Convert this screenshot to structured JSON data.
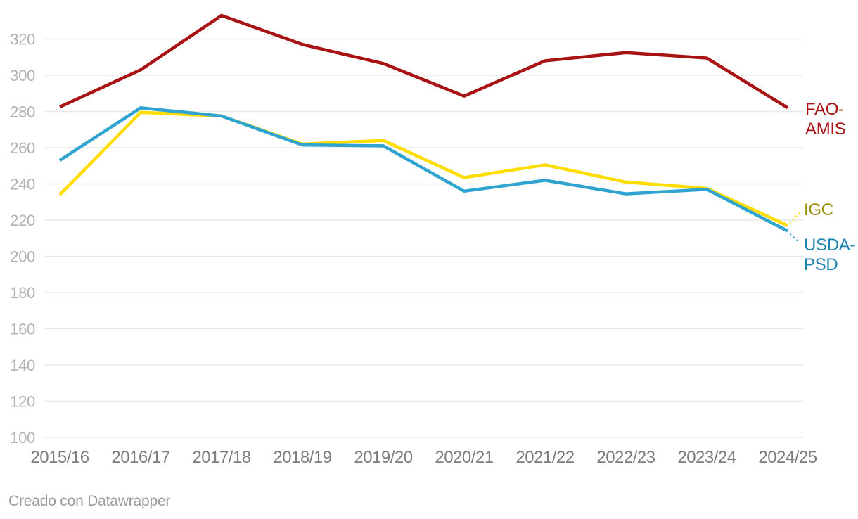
{
  "chart_data": {
    "type": "line",
    "categories": [
      "2015/16",
      "2016/17",
      "2017/18",
      "2018/19",
      "2019/20",
      "2020/21",
      "2021/22",
      "2022/23",
      "2023/24",
      "2024/25"
    ],
    "series": [
      {
        "name": "FAO-AMIS",
        "color": "#a81213",
        "label_color": "#a81213",
        "values": [
          282.5,
          303,
          333,
          317,
          306.5,
          288.5,
          308,
          312.5,
          309.5,
          282
        ]
      },
      {
        "name": "IGC",
        "color": "#ffdd00",
        "label_color": "#998c00",
        "values": [
          234,
          279.5,
          277.5,
          262,
          264,
          243.5,
          250.5,
          241,
          237.5,
          217
        ]
      },
      {
        "name": "USDA-PSD",
        "color": "#30a4d0",
        "label_color": "#1e84b0",
        "values": [
          253,
          282,
          277.5,
          261.5,
          261,
          236,
          242,
          234.5,
          237,
          214
        ]
      }
    ],
    "title": "",
    "xlabel": "",
    "ylabel": "",
    "ylim": [
      100,
      335
    ],
    "yticks": [
      100,
      120,
      140,
      160,
      180,
      200,
      220,
      240,
      260,
      280,
      300,
      320
    ],
    "grid": "horizontal-only",
    "legend_position": "right-of-line-ends"
  },
  "labels": {
    "fao_line1": "FAO-",
    "fao_line2": "AMIS",
    "igc": "IGC",
    "usda_line1": "USDA-",
    "usda_line2": "PSD"
  },
  "footer": {
    "credit": "Creado con Datawrapper"
  },
  "colors": {
    "background": "#ffffff",
    "gridline": "#e8e8e8",
    "ytick_text": "#b3b3b3",
    "xtick_text": "#7d7d7d",
    "footer_text": "#9b9b9b"
  }
}
